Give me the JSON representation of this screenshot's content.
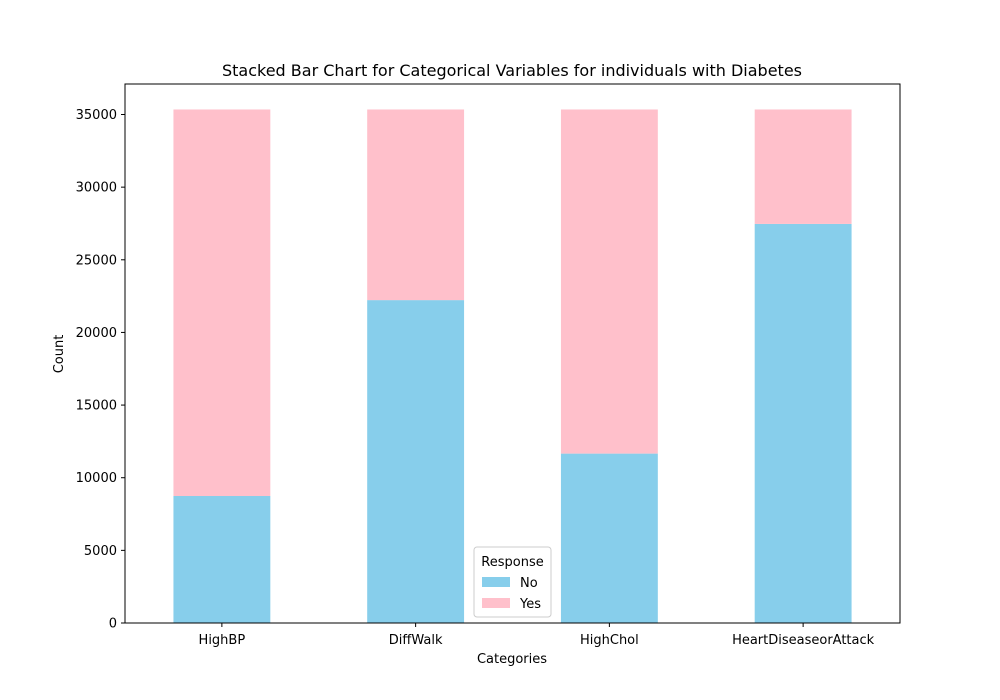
{
  "chart_data": {
    "type": "bar",
    "stacked": true,
    "title": "Stacked Bar Chart for Categorical Variables for individuals with Diabetes",
    "xlabel": "Categories",
    "ylabel": "Count",
    "categories": [
      "HighBP",
      "DiffWalk",
      "HighChol",
      "HeartDiseaseorAttack"
    ],
    "series": [
      {
        "name": "No",
        "color": "#87ceeb",
        "values": [
          8742,
          22225,
          11660,
          27468
        ]
      },
      {
        "name": "Yes",
        "color": "#ffc0cb",
        "values": [
          26604,
          13121,
          23686,
          7878
        ]
      }
    ],
    "ylim": [
      0,
      37100
    ],
    "yticks": [
      0,
      5000,
      10000,
      15000,
      20000,
      25000,
      30000,
      35000
    ],
    "grid": false,
    "legend": {
      "title": "Response",
      "placement": "lower-center"
    }
  }
}
